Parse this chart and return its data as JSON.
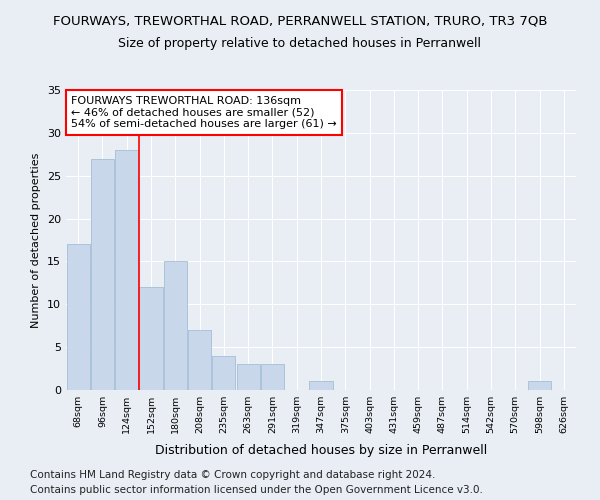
{
  "title": "FOURWAYS, TREWORTHAL ROAD, PERRANWELL STATION, TRURO, TR3 7QB",
  "subtitle": "Size of property relative to detached houses in Perranwell",
  "xlabel": "Distribution of detached houses by size in Perranwell",
  "ylabel": "Number of detached properties",
  "bins": [
    "68sqm",
    "96sqm",
    "124sqm",
    "152sqm",
    "180sqm",
    "208sqm",
    "235sqm",
    "263sqm",
    "291sqm",
    "319sqm",
    "347sqm",
    "375sqm",
    "403sqm",
    "431sqm",
    "459sqm",
    "487sqm",
    "514sqm",
    "542sqm",
    "570sqm",
    "598sqm",
    "626sqm"
  ],
  "values": [
    17,
    27,
    28,
    12,
    15,
    7,
    4,
    3,
    3,
    0,
    1,
    0,
    0,
    0,
    0,
    0,
    0,
    0,
    0,
    1,
    0
  ],
  "bar_color": "#c8d8ea",
  "bar_edge_color": "#9ab8d0",
  "red_line_x": 2.5,
  "annotation_line1": "FOURWAYS TREWORTHAL ROAD: 136sqm",
  "annotation_line2": "← 46% of detached houses are smaller (52)",
  "annotation_line3": "54% of semi-detached houses are larger (61) →",
  "ylim": [
    0,
    35
  ],
  "yticks": [
    0,
    5,
    10,
    15,
    20,
    25,
    30,
    35
  ],
  "footer1": "Contains HM Land Registry data © Crown copyright and database right 2024.",
  "footer2": "Contains public sector information licensed under the Open Government Licence v3.0.",
  "bg_color": "#e8eef4",
  "grid_color": "#ffffff",
  "title_fontsize": 9.5,
  "subtitle_fontsize": 9,
  "xlabel_fontsize": 9,
  "ylabel_fontsize": 8,
  "footer_fontsize": 7.5
}
